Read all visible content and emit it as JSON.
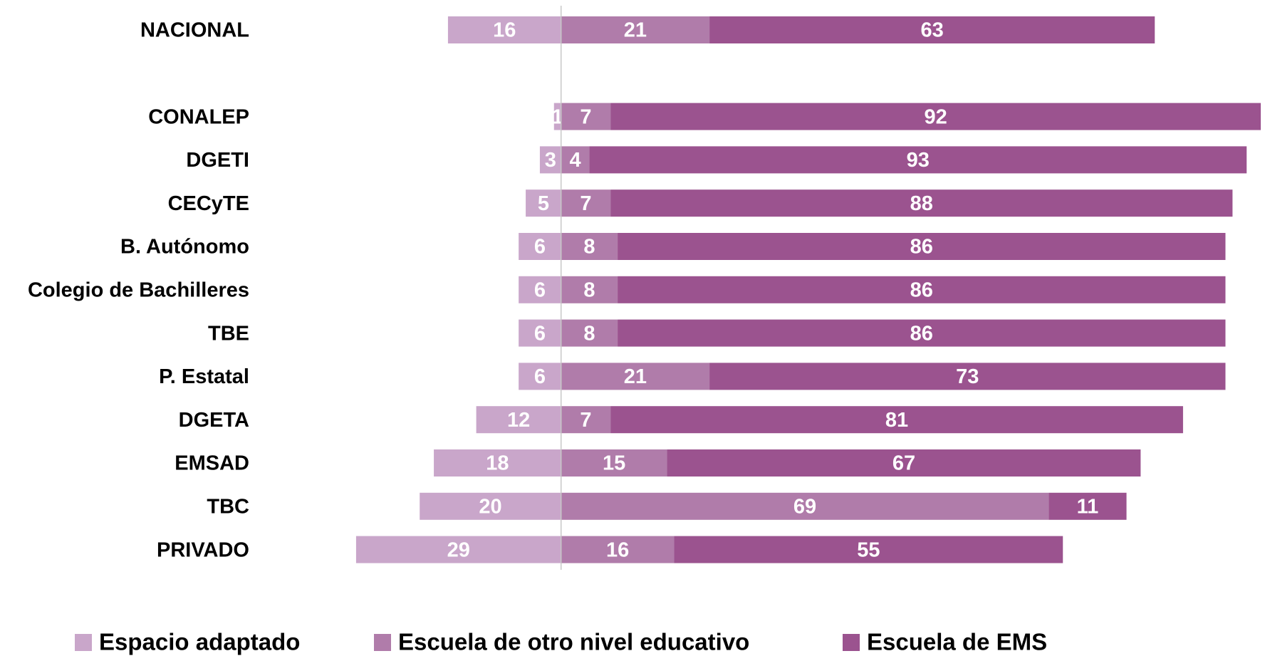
{
  "chart_data": {
    "type": "diverging-bar",
    "categories": [
      "NACIONAL",
      null,
      "CONALEP",
      "DGETI",
      "CECyTE",
      "B. Autónomo",
      "Colegio de Bachilleres",
      "TBE",
      "P. Estatal",
      "DGETA",
      "EMSAD",
      "TBC",
      "PRIVADO"
    ],
    "series": [
      {
        "name": "Espacio adaptado",
        "color": "#c9a6ca",
        "side": "left",
        "values": [
          16,
          null,
          1,
          3,
          5,
          6,
          6,
          6,
          6,
          12,
          18,
          20,
          29
        ]
      },
      {
        "name": "Escuela de otro nivel educativo",
        "color": "#b07caa",
        "side": "right",
        "values": [
          21,
          null,
          7,
          4,
          7,
          8,
          8,
          8,
          21,
          7,
          15,
          69,
          16
        ]
      },
      {
        "name": "Escuela de EMS",
        "color": "#9b538f",
        "side": "right",
        "values": [
          63,
          null,
          92,
          93,
          88,
          86,
          86,
          86,
          73,
          81,
          67,
          11,
          55
        ]
      }
    ],
    "xlim": [
      -30,
      100
    ],
    "legend": "bottom"
  }
}
